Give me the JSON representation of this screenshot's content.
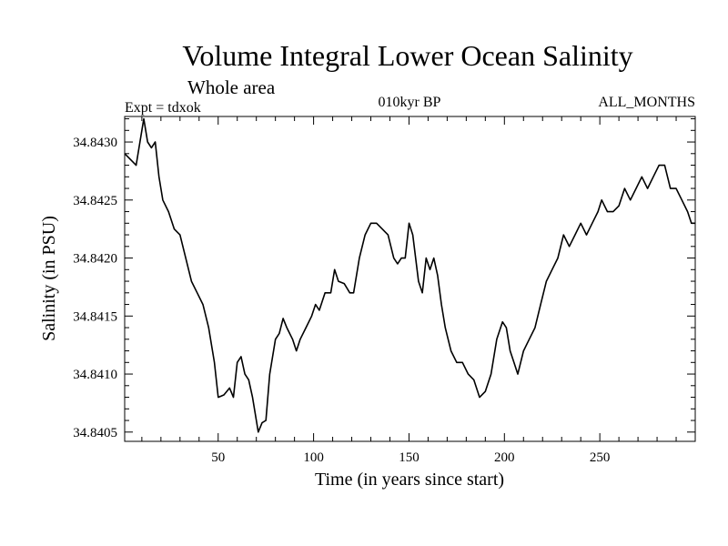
{
  "chart_data": {
    "type": "line",
    "title": "Volume Integral Lower Ocean Salinity",
    "subtitle": "Whole area",
    "annotations": {
      "left": "Expt = tdxok",
      "center": "010kyr BP",
      "right": "ALL_MONTHS"
    },
    "xlabel": "Time (in years since start)",
    "ylabel": "Salinity (in PSU)",
    "xlim": [
      1,
      300
    ],
    "ylim": [
      34.84042,
      34.84322
    ],
    "xticks": [
      50,
      100,
      150,
      200,
      250
    ],
    "xtick_labels": [
      "50",
      "100",
      "150",
      "200",
      "250"
    ],
    "yticks": [
      34.8405,
      34.841,
      34.8415,
      34.842,
      34.8425,
      34.843
    ],
    "ytick_labels": [
      "34.8405",
      "34.8410",
      "34.8415",
      "34.8420",
      "34.8425",
      "34.8430"
    ],
    "grid": false,
    "series": [
      {
        "x": [
          1,
          4,
          7,
          9,
          11,
          13,
          15,
          17,
          19,
          21,
          24,
          27,
          30,
          33,
          36,
          39,
          42,
          45,
          48,
          50,
          53,
          56,
          58,
          60,
          62,
          64,
          66,
          68,
          71,
          73,
          75,
          77,
          80,
          82,
          84,
          86,
          89,
          91,
          93,
          96,
          99,
          101,
          103,
          106,
          109,
          111,
          113,
          116,
          119,
          121,
          124,
          127,
          130,
          133,
          136,
          139,
          142,
          144,
          146,
          148,
          150,
          152,
          155,
          157,
          159,
          161,
          163,
          165,
          167,
          169,
          172,
          175,
          178,
          181,
          184,
          187,
          190,
          193,
          196,
          199,
          201,
          203,
          205,
          207,
          210,
          213,
          216,
          219,
          222,
          225,
          228,
          231,
          234,
          237,
          240,
          243,
          246,
          249,
          251,
          254,
          257,
          260,
          263,
          266,
          269,
          272,
          275,
          278,
          281,
          284,
          287,
          290,
          293,
          296,
          298,
          300
        ],
        "y": [
          34.8429,
          34.84285,
          34.8428,
          34.843,
          34.8432,
          34.843,
          34.84295,
          34.843,
          34.8427,
          34.8425,
          34.8424,
          34.84225,
          34.8422,
          34.842,
          34.8418,
          34.8417,
          34.8416,
          34.8414,
          34.8411,
          34.8408,
          34.84082,
          34.84088,
          34.8408,
          34.8411,
          34.84115,
          34.841,
          34.84095,
          34.8408,
          34.8405,
          34.84058,
          34.8406,
          34.841,
          34.8413,
          34.84135,
          34.84148,
          34.8414,
          34.8413,
          34.8412,
          34.8413,
          34.8414,
          34.8415,
          34.8416,
          34.84155,
          34.8417,
          34.8417,
          34.8419,
          34.8418,
          34.84178,
          34.8417,
          34.8417,
          34.842,
          34.8422,
          34.8423,
          34.8423,
          34.84225,
          34.8422,
          34.842,
          34.84195,
          34.842,
          34.842,
          34.8423,
          34.8422,
          34.8418,
          34.8417,
          34.842,
          34.8419,
          34.842,
          34.84185,
          34.8416,
          34.8414,
          34.8412,
          34.8411,
          34.8411,
          34.841,
          34.84095,
          34.8408,
          34.84085,
          34.841,
          34.8413,
          34.84145,
          34.8414,
          34.8412,
          34.8411,
          34.841,
          34.8412,
          34.8413,
          34.8414,
          34.8416,
          34.8418,
          34.8419,
          34.842,
          34.8422,
          34.8421,
          34.8422,
          34.8423,
          34.8422,
          34.8423,
          34.8424,
          34.8425,
          34.8424,
          34.8424,
          34.84245,
          34.8426,
          34.8425,
          34.8426,
          34.8427,
          34.8426,
          34.8427,
          34.8428,
          34.8428,
          34.8426,
          34.8426,
          34.8425,
          34.8424,
          34.8423,
          34.8423
        ]
      }
    ]
  }
}
